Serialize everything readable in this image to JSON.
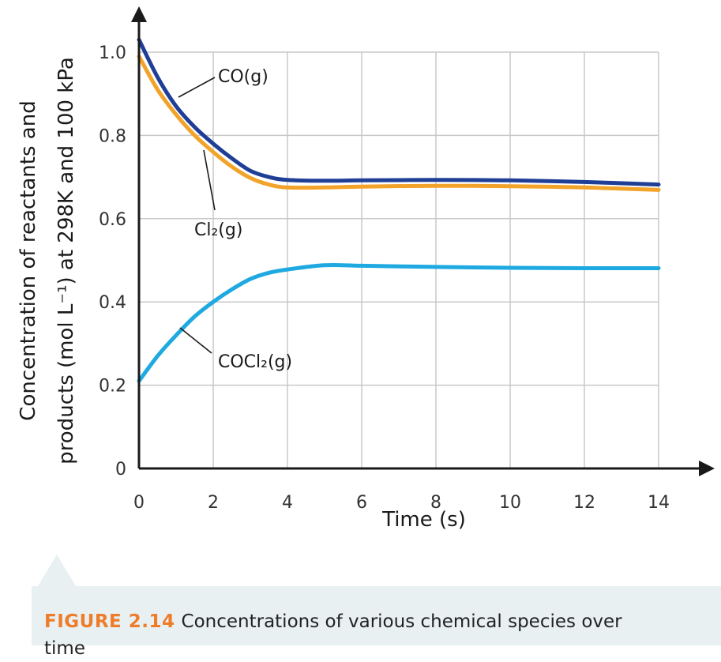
{
  "chart_data": {
    "type": "line",
    "xlabel": "Time (s)",
    "ylabel_line1": "Concentration of reactants and",
    "ylabel_line2": "products (mol L⁻¹) at 298K and 100 kPa",
    "xlim": [
      0,
      14
    ],
    "ylim": [
      0,
      1.0
    ],
    "xticks": [
      "0",
      "2",
      "4",
      "6",
      "8",
      "10",
      "12",
      "14"
    ],
    "yticks": [
      "0",
      "0.2",
      "0.4",
      "0.6",
      "0.8",
      "1.0"
    ],
    "grid": true,
    "series": [
      {
        "name": "CO(g)",
        "color": "#1f3f96",
        "x": [
          0,
          0.5,
          1,
          1.5,
          2,
          2.5,
          3,
          3.5,
          4,
          5,
          6,
          8,
          10,
          12,
          14
        ],
        "y": [
          1.03,
          0.94,
          0.87,
          0.82,
          0.78,
          0.745,
          0.715,
          0.7,
          0.693,
          0.691,
          0.692,
          0.693,
          0.692,
          0.688,
          0.682
        ]
      },
      {
        "name": "Cl₂(g)",
        "color": "#f2a32a",
        "x": [
          0,
          0.5,
          1,
          1.5,
          2,
          2.5,
          3,
          3.5,
          4,
          5,
          6,
          8,
          10,
          12,
          14
        ],
        "y": [
          0.99,
          0.91,
          0.85,
          0.8,
          0.76,
          0.725,
          0.698,
          0.682,
          0.675,
          0.675,
          0.677,
          0.679,
          0.678,
          0.675,
          0.669
        ]
      },
      {
        "name": "COCl₂(g)",
        "color": "#1fa9e1",
        "x": [
          0,
          0.5,
          1,
          1.5,
          2,
          2.5,
          3,
          3.5,
          4,
          5,
          6,
          8,
          10,
          12,
          14
        ],
        "y": [
          0.21,
          0.27,
          0.32,
          0.365,
          0.4,
          0.43,
          0.455,
          0.47,
          0.478,
          0.488,
          0.487,
          0.484,
          0.482,
          0.481,
          0.481
        ]
      }
    ],
    "annotations": [
      {
        "series": "CO(g)",
        "text": "CO(g)"
      },
      {
        "series": "Cl₂(g)",
        "text": "Cl₂(g)"
      },
      {
        "series": "COCl₂(g)",
        "text": "COCl₂(g)"
      }
    ]
  },
  "caption": {
    "figure_number": "FIGURE 2.14",
    "text": "Concentrations of various chemical species over time"
  }
}
